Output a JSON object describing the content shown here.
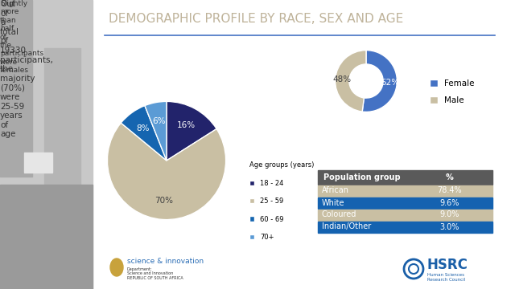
{
  "title": "DEMOGRAPHIC PROFILE BY RACE, SEX AND AGE",
  "chart_data": [
    {
      "type": "pie",
      "title": "Out of a total of 19330 participants, the majority (70%) were 25-59 years of age",
      "legend_title": "Age groups (years)",
      "categories": [
        "18 - 24",
        "25 - 59",
        "60 - 69",
        "70+"
      ],
      "values": [
        16,
        70,
        8,
        6
      ],
      "value_labels": [
        "16%",
        "70%",
        "8%",
        "6%"
      ],
      "colors": [
        "#22236b",
        "#c9bfa3",
        "#1565b0",
        "#5b9bd5"
      ],
      "data_labels": true,
      "legend": "upper left"
    },
    {
      "type": "donut",
      "annotation": "Slightly more than half of the participants were females",
      "categories": [
        "Female",
        "Male"
      ],
      "values": [
        52,
        48
      ],
      "value_labels": [
        "52%",
        "48%"
      ],
      "colors": [
        "#4472c4",
        "#c9bfa3"
      ],
      "data_labels": true,
      "legend": "upper left"
    }
  ],
  "table": {
    "columns": [
      "Population group",
      "%"
    ],
    "rows": [
      [
        "African",
        "78.4%"
      ],
      [
        "White",
        "9.6%"
      ],
      [
        "Coloured",
        "9.0%"
      ],
      [
        "Indian/Other",
        "3.0%"
      ]
    ]
  },
  "logos": {
    "left": [
      "science & innovation",
      "Department:",
      "Science and Innovation",
      "REPUBLIC OF SOUTH AFRICA"
    ],
    "right": [
      "HSRC",
      "Human Sciences",
      "Research Council"
    ]
  }
}
